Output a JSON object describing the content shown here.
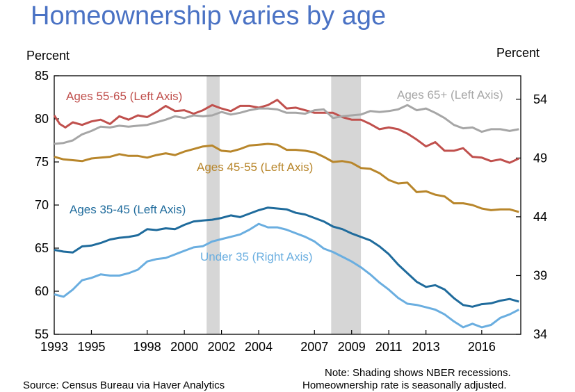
{
  "page": {
    "title": "Homeownership varies by age"
  },
  "notes": {
    "left_unit": "Percent",
    "right_unit": "Percent",
    "shading_note": "Note: Shading shows NBER recessions.",
    "adjust_note": "Homeownership rate is seasonally adjusted.",
    "source": "Source: Census Bureau via Haver Analytics"
  },
  "chart_data": {
    "type": "line",
    "title": "Homeownership varies by age",
    "x_range": [
      1993,
      2018.1
    ],
    "x_ticks": [
      1993,
      1995,
      1998,
      2000,
      2002,
      2004,
      2007,
      2009,
      2011,
      2013,
      2016
    ],
    "left_axis": {
      "label": "Percent",
      "range": [
        55,
        85
      ],
      "ticks": [
        55,
        60,
        65,
        70,
        75,
        80,
        85
      ]
    },
    "right_axis": {
      "label": "Percent",
      "range": [
        34,
        56
      ],
      "ticks": [
        34,
        39,
        44,
        49,
        54
      ]
    },
    "recessions": [
      {
        "start": 2001.2,
        "end": 2001.9
      },
      {
        "start": 2007.9,
        "end": 2009.5
      }
    ],
    "series": [
      {
        "name": "Ages 55-65 (Left Axis)",
        "axis": "left",
        "color": "#c0504d",
        "points": [
          [
            1993.0,
            80.4
          ],
          [
            1993.3,
            79.4
          ],
          [
            1993.6,
            79.0
          ],
          [
            1994.0,
            79.6
          ],
          [
            1994.5,
            79.3
          ],
          [
            1995.0,
            79.7
          ],
          [
            1995.5,
            79.9
          ],
          [
            1996.0,
            79.4
          ],
          [
            1996.5,
            80.3
          ],
          [
            1997.0,
            79.9
          ],
          [
            1997.5,
            80.4
          ],
          [
            1998.0,
            80.2
          ],
          [
            1998.5,
            80.8
          ],
          [
            1999.0,
            81.5
          ],
          [
            1999.5,
            80.9
          ],
          [
            2000.0,
            81.0
          ],
          [
            2000.5,
            80.6
          ],
          [
            2001.0,
            81.0
          ],
          [
            2001.5,
            81.6
          ],
          [
            2002.0,
            81.2
          ],
          [
            2002.5,
            80.9
          ],
          [
            2003.0,
            81.5
          ],
          [
            2003.5,
            81.5
          ],
          [
            2004.0,
            81.3
          ],
          [
            2004.5,
            81.6
          ],
          [
            2005.0,
            82.2
          ],
          [
            2005.5,
            81.2
          ],
          [
            2006.0,
            81.3
          ],
          [
            2006.5,
            81.0
          ],
          [
            2007.0,
            80.7
          ],
          [
            2007.5,
            80.7
          ],
          [
            2008.0,
            80.7
          ],
          [
            2008.5,
            80.2
          ],
          [
            2009.0,
            79.9
          ],
          [
            2009.5,
            79.9
          ],
          [
            2010.0,
            79.4
          ],
          [
            2010.5,
            78.8
          ],
          [
            2011.0,
            79.0
          ],
          [
            2011.5,
            78.8
          ],
          [
            2012.0,
            78.3
          ],
          [
            2012.5,
            77.6
          ],
          [
            2013.0,
            76.8
          ],
          [
            2013.5,
            77.3
          ],
          [
            2014.0,
            76.3
          ],
          [
            2014.5,
            76.3
          ],
          [
            2015.0,
            76.6
          ],
          [
            2015.5,
            75.6
          ],
          [
            2016.0,
            75.5
          ],
          [
            2016.5,
            75.1
          ],
          [
            2017.0,
            75.3
          ],
          [
            2017.5,
            74.9
          ],
          [
            2018.0,
            75.4
          ]
        ]
      },
      {
        "name": "Ages 65+ (Left Axis)",
        "axis": "left",
        "color": "#a6a6a6",
        "points": [
          [
            1993.0,
            77.1
          ],
          [
            1993.5,
            77.2
          ],
          [
            1994.0,
            77.5
          ],
          [
            1994.5,
            78.2
          ],
          [
            1995.0,
            78.6
          ],
          [
            1995.5,
            79.1
          ],
          [
            1996.0,
            79.0
          ],
          [
            1996.5,
            79.2
          ],
          [
            1997.0,
            79.1
          ],
          [
            1997.5,
            79.2
          ],
          [
            1998.0,
            79.3
          ],
          [
            1998.5,
            79.6
          ],
          [
            1999.0,
            79.9
          ],
          [
            1999.5,
            80.3
          ],
          [
            2000.0,
            80.1
          ],
          [
            2000.5,
            80.4
          ],
          [
            2001.0,
            80.3
          ],
          [
            2001.5,
            80.4
          ],
          [
            2002.0,
            80.8
          ],
          [
            2002.5,
            80.5
          ],
          [
            2003.0,
            80.7
          ],
          [
            2003.5,
            81.0
          ],
          [
            2004.0,
            81.2
          ],
          [
            2004.5,
            81.2
          ],
          [
            2005.0,
            81.1
          ],
          [
            2005.5,
            80.7
          ],
          [
            2006.0,
            80.7
          ],
          [
            2006.5,
            80.6
          ],
          [
            2007.0,
            81.0
          ],
          [
            2007.5,
            81.1
          ],
          [
            2008.0,
            80.1
          ],
          [
            2008.5,
            80.3
          ],
          [
            2009.0,
            80.4
          ],
          [
            2009.5,
            80.5
          ],
          [
            2010.0,
            80.9
          ],
          [
            2010.5,
            80.8
          ],
          [
            2011.0,
            80.9
          ],
          [
            2011.5,
            81.1
          ],
          [
            2012.0,
            81.6
          ],
          [
            2012.5,
            81.0
          ],
          [
            2013.0,
            81.2
          ],
          [
            2013.5,
            80.7
          ],
          [
            2014.0,
            80.1
          ],
          [
            2014.5,
            79.3
          ],
          [
            2015.0,
            78.9
          ],
          [
            2015.5,
            79.0
          ],
          [
            2016.0,
            78.5
          ],
          [
            2016.5,
            78.8
          ],
          [
            2017.0,
            78.8
          ],
          [
            2017.5,
            78.6
          ],
          [
            2018.0,
            78.8
          ]
        ]
      },
      {
        "name": "Ages 45-55 (Left Axis)",
        "axis": "left",
        "color": "#b8862b",
        "points": [
          [
            1993.0,
            75.6
          ],
          [
            1993.5,
            75.3
          ],
          [
            1994.0,
            75.2
          ],
          [
            1994.5,
            75.1
          ],
          [
            1995.0,
            75.4
          ],
          [
            1995.5,
            75.5
          ],
          [
            1996.0,
            75.6
          ],
          [
            1996.5,
            75.9
          ],
          [
            1997.0,
            75.7
          ],
          [
            1997.5,
            75.7
          ],
          [
            1998.0,
            75.5
          ],
          [
            1998.5,
            75.8
          ],
          [
            1999.0,
            76.0
          ],
          [
            1999.5,
            75.8
          ],
          [
            2000.0,
            76.2
          ],
          [
            2000.5,
            76.5
          ],
          [
            2001.0,
            76.8
          ],
          [
            2001.5,
            76.9
          ],
          [
            2002.0,
            76.3
          ],
          [
            2002.5,
            76.2
          ],
          [
            2003.0,
            76.5
          ],
          [
            2003.5,
            76.9
          ],
          [
            2004.0,
            77.0
          ],
          [
            2004.5,
            77.1
          ],
          [
            2005.0,
            77.0
          ],
          [
            2005.5,
            76.4
          ],
          [
            2006.0,
            76.4
          ],
          [
            2006.5,
            76.3
          ],
          [
            2007.0,
            76.1
          ],
          [
            2007.5,
            75.6
          ],
          [
            2008.0,
            75.0
          ],
          [
            2008.5,
            75.1
          ],
          [
            2009.0,
            74.9
          ],
          [
            2009.5,
            74.3
          ],
          [
            2010.0,
            74.2
          ],
          [
            2010.5,
            73.7
          ],
          [
            2011.0,
            72.9
          ],
          [
            2011.5,
            72.5
          ],
          [
            2012.0,
            72.6
          ],
          [
            2012.5,
            71.5
          ],
          [
            2013.0,
            71.6
          ],
          [
            2013.5,
            71.2
          ],
          [
            2014.0,
            71.0
          ],
          [
            2014.5,
            70.2
          ],
          [
            2015.0,
            70.2
          ],
          [
            2015.5,
            70.0
          ],
          [
            2016.0,
            69.6
          ],
          [
            2016.5,
            69.4
          ],
          [
            2017.0,
            69.5
          ],
          [
            2017.5,
            69.5
          ],
          [
            2018.0,
            69.2
          ]
        ]
      },
      {
        "name": "Ages 35-45 (Left Axis)",
        "axis": "left",
        "color": "#1f6b9c",
        "points": [
          [
            1993.0,
            64.8
          ],
          [
            1993.5,
            64.6
          ],
          [
            1994.0,
            64.5
          ],
          [
            1994.5,
            65.2
          ],
          [
            1995.0,
            65.3
          ],
          [
            1995.5,
            65.6
          ],
          [
            1996.0,
            66.0
          ],
          [
            1996.5,
            66.2
          ],
          [
            1997.0,
            66.3
          ],
          [
            1997.5,
            66.5
          ],
          [
            1998.0,
            67.2
          ],
          [
            1998.5,
            67.1
          ],
          [
            1999.0,
            67.3
          ],
          [
            1999.5,
            67.2
          ],
          [
            2000.0,
            67.7
          ],
          [
            2000.5,
            68.1
          ],
          [
            2001.0,
            68.2
          ],
          [
            2001.5,
            68.3
          ],
          [
            2002.0,
            68.5
          ],
          [
            2002.5,
            68.8
          ],
          [
            2003.0,
            68.6
          ],
          [
            2003.5,
            69.0
          ],
          [
            2004.0,
            69.4
          ],
          [
            2004.5,
            69.7
          ],
          [
            2005.0,
            69.6
          ],
          [
            2005.5,
            69.5
          ],
          [
            2006.0,
            69.1
          ],
          [
            2006.5,
            68.9
          ],
          [
            2007.0,
            68.5
          ],
          [
            2007.5,
            68.1
          ],
          [
            2008.0,
            67.5
          ],
          [
            2008.5,
            67.2
          ],
          [
            2009.0,
            66.7
          ],
          [
            2009.5,
            66.3
          ],
          [
            2010.0,
            65.9
          ],
          [
            2010.5,
            65.2
          ],
          [
            2011.0,
            64.3
          ],
          [
            2011.5,
            63.1
          ],
          [
            2012.0,
            62.1
          ],
          [
            2012.5,
            61.1
          ],
          [
            2013.0,
            60.5
          ],
          [
            2013.5,
            60.7
          ],
          [
            2014.0,
            60.2
          ],
          [
            2014.5,
            59.2
          ],
          [
            2015.0,
            58.4
          ],
          [
            2015.5,
            58.2
          ],
          [
            2016.0,
            58.5
          ],
          [
            2016.5,
            58.6
          ],
          [
            2017.0,
            58.9
          ],
          [
            2017.5,
            59.1
          ],
          [
            2018.0,
            58.8
          ]
        ]
      },
      {
        "name": "Under 35 (Right Axis)",
        "axis": "right",
        "color": "#6aaee0",
        "points": [
          [
            1993.0,
            37.4
          ],
          [
            1993.5,
            37.2
          ],
          [
            1994.0,
            37.8
          ],
          [
            1994.5,
            38.6
          ],
          [
            1995.0,
            38.8
          ],
          [
            1995.5,
            39.1
          ],
          [
            1996.0,
            39.0
          ],
          [
            1996.5,
            39.0
          ],
          [
            1997.0,
            39.2
          ],
          [
            1997.5,
            39.5
          ],
          [
            1998.0,
            40.2
          ],
          [
            1998.5,
            40.4
          ],
          [
            1999.0,
            40.5
          ],
          [
            1999.5,
            40.8
          ],
          [
            2000.0,
            41.1
          ],
          [
            2000.5,
            41.4
          ],
          [
            2001.0,
            41.5
          ],
          [
            2001.5,
            41.9
          ],
          [
            2002.0,
            42.1
          ],
          [
            2002.5,
            42.3
          ],
          [
            2003.0,
            42.5
          ],
          [
            2003.5,
            42.9
          ],
          [
            2004.0,
            43.4
          ],
          [
            2004.5,
            43.1
          ],
          [
            2005.0,
            43.1
          ],
          [
            2005.5,
            42.9
          ],
          [
            2006.0,
            42.6
          ],
          [
            2006.5,
            42.3
          ],
          [
            2007.0,
            41.9
          ],
          [
            2007.5,
            41.3
          ],
          [
            2008.0,
            41.0
          ],
          [
            2008.5,
            40.6
          ],
          [
            2009.0,
            40.2
          ],
          [
            2009.5,
            39.7
          ],
          [
            2010.0,
            39.1
          ],
          [
            2010.5,
            38.4
          ],
          [
            2011.0,
            37.8
          ],
          [
            2011.5,
            37.1
          ],
          [
            2012.0,
            36.6
          ],
          [
            2012.5,
            36.5
          ],
          [
            2013.0,
            36.3
          ],
          [
            2013.5,
            36.1
          ],
          [
            2014.0,
            35.7
          ],
          [
            2014.5,
            35.1
          ],
          [
            2015.0,
            34.6
          ],
          [
            2015.5,
            34.9
          ],
          [
            2016.0,
            34.6
          ],
          [
            2016.5,
            34.8
          ],
          [
            2017.0,
            35.4
          ],
          [
            2017.5,
            35.7
          ],
          [
            2018.0,
            36.1
          ]
        ]
      }
    ],
    "labels": [
      {
        "text": "Ages 55-65 (Left Axis)",
        "color": "#c0504d"
      },
      {
        "text": "Ages 65+ (Left Axis)",
        "color": "#a6a6a6"
      },
      {
        "text": "Ages 45-55 (Left Axis)",
        "color": "#b8862b"
      },
      {
        "text": "Ages 35-45 (Left Axis)",
        "color": "#1f6b9c"
      },
      {
        "text": "Under 35 (Right Axis)",
        "color": "#6aaee0"
      }
    ]
  }
}
